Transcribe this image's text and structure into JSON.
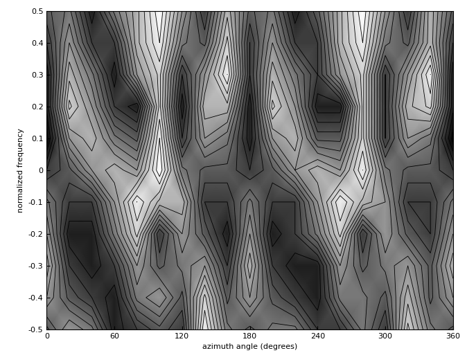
{
  "chart_data": {
    "type": "heatmap",
    "xlabel": "azimuth angle (degrees)",
    "ylabel": "normalized frequency",
    "color": "gray",
    "x": [
      0,
      20,
      40,
      60,
      80,
      100,
      120,
      140,
      160,
      180,
      200,
      220,
      240,
      260,
      280,
      300,
      320,
      340,
      360
    ],
    "y": [
      -0.5,
      -0.4,
      -0.3,
      -0.2,
      -0.1,
      0,
      0.1,
      0.2,
      0.3,
      0.4,
      0.5
    ],
    "cells": [
      [
        0.4,
        0.6,
        0.5,
        0.2,
        0.3,
        0.4,
        0.3,
        0.9,
        0.5,
        0.4,
        0.5,
        0.5,
        0.3,
        0.3,
        0.5,
        0.3,
        0.8,
        0.5,
        0.4
      ],
      [
        0.6,
        0.4,
        0.3,
        0.2,
        0.5,
        0.6,
        0.4,
        0.8,
        0.4,
        0.6,
        0.4,
        0.3,
        0.2,
        0.5,
        0.5,
        0.4,
        0.7,
        0.4,
        0.6
      ],
      [
        0.7,
        0.3,
        0.2,
        0.3,
        0.6,
        0.4,
        0.5,
        0.6,
        0.3,
        0.7,
        0.3,
        0.2,
        0.2,
        0.6,
        0.4,
        0.5,
        0.6,
        0.4,
        0.7
      ],
      [
        0.6,
        0.2,
        0.2,
        0.5,
        0.8,
        0.3,
        0.6,
        0.4,
        0.2,
        0.6,
        0.2,
        0.3,
        0.5,
        0.8,
        0.3,
        0.6,
        0.4,
        0.3,
        0.6
      ],
      [
        0.5,
        0.3,
        0.3,
        0.6,
        0.9,
        0.7,
        0.7,
        0.3,
        0.3,
        0.5,
        0.3,
        0.3,
        0.6,
        0.9,
        0.7,
        0.6,
        0.3,
        0.3,
        0.5
      ],
      [
        0.3,
        0.4,
        0.6,
        0.7,
        0.6,
        0.95,
        0.5,
        0.4,
        0.4,
        0.3,
        0.4,
        0.6,
        0.7,
        0.6,
        0.9,
        0.5,
        0.4,
        0.4,
        0.3
      ],
      [
        0.1,
        0.6,
        0.7,
        0.5,
        0.4,
        0.9,
        0.3,
        0.6,
        0.5,
        0.2,
        0.6,
        0.7,
        0.4,
        0.4,
        0.8,
        0.3,
        0.6,
        0.5,
        0.1
      ],
      [
        0.2,
        0.8,
        0.6,
        0.3,
        0.2,
        0.8,
        0.2,
        0.7,
        0.7,
        0.2,
        0.8,
        0.6,
        0.2,
        0.2,
        0.8,
        0.3,
        0.7,
        0.8,
        0.2
      ],
      [
        0.2,
        0.7,
        0.5,
        0.2,
        0.6,
        0.8,
        0.3,
        0.6,
        0.9,
        0.3,
        0.7,
        0.5,
        0.3,
        0.6,
        0.8,
        0.3,
        0.6,
        0.9,
        0.2
      ],
      [
        0.3,
        0.6,
        0.3,
        0.3,
        0.7,
        0.9,
        0.5,
        0.4,
        0.8,
        0.3,
        0.6,
        0.3,
        0.3,
        0.7,
        0.9,
        0.5,
        0.4,
        0.7,
        0.3
      ],
      [
        0.4,
        0.5,
        0.2,
        0.5,
        0.7,
        0.95,
        0.6,
        0.3,
        0.7,
        0.4,
        0.5,
        0.2,
        0.4,
        0.7,
        0.95,
        0.6,
        0.3,
        0.7,
        0.4
      ]
    ],
    "xlim": [
      0,
      360
    ],
    "ylim": [
      -0.5,
      0.5
    ],
    "xticks": [
      0,
      60,
      120,
      180,
      240,
      300,
      360
    ],
    "yticks": [
      -0.5,
      -0.4,
      -0.3,
      -0.2,
      -0.1,
      0,
      0.1,
      0.2,
      0.3,
      0.4,
      0.5
    ]
  }
}
